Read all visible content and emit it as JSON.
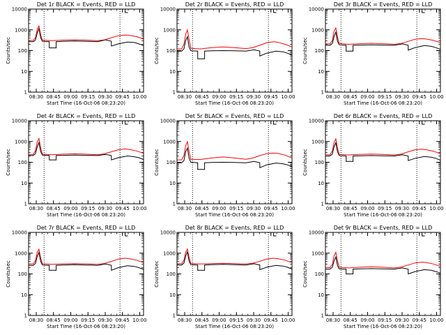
{
  "figure": {
    "common": {
      "xlabel": "Start Time (16-Oct-06 08:23:20)",
      "ylabel": "Counts/sec",
      "x_ticks": [
        "08:30",
        "08:45",
        "09:00",
        "09:15",
        "09:30",
        "09:45",
        "10:00"
      ],
      "y_ticks": [
        "1",
        "10",
        "100",
        "1000",
        "10000"
      ],
      "series_colors": {
        "Events": "#000000",
        "LLD": "#ff0000"
      }
    }
  },
  "chart_data": [
    {
      "type": "line",
      "title": "Det 1r BLACK = Events, RED = LLD",
      "x_unit": "minutes after 08:23:20",
      "xlim": [
        0,
        100
      ],
      "ylim": [
        1,
        10000
      ],
      "y_scale": "log",
      "x_ticks": [
        6.67,
        21.67,
        36.67,
        51.67,
        66.67,
        81.67,
        96.67
      ],
      "vlines": [
        13.5,
        79.5
      ],
      "series": [
        {
          "name": "Events",
          "color": "#000000",
          "x": [
            0,
            4,
            6,
            7.5,
            9,
            10.5,
            12,
            18,
            18,
            24,
            24,
            30,
            40,
            50,
            60,
            67,
            72,
            72,
            78,
            86,
            92,
            96,
            100
          ],
          "y": [
            270,
            270,
            320,
            700,
            1150,
            420,
            280,
            270,
            135,
            135,
            270,
            280,
            290,
            280,
            270,
            330,
            280,
            165,
            210,
            260,
            245,
            210,
            175
          ]
        },
        {
          "name": "LLD",
          "color": "#ff0000",
          "x": [
            0,
            4,
            6,
            7.5,
            9,
            10.5,
            12,
            20,
            30,
            40,
            50,
            60,
            66,
            72,
            78,
            84,
            88,
            94,
            100
          ],
          "y": [
            310,
            310,
            420,
            1050,
            1550,
            600,
            320,
            300,
            320,
            330,
            320,
            300,
            330,
            420,
            520,
            560,
            540,
            470,
            360
          ]
        }
      ]
    },
    {
      "type": "line",
      "title": "Det 2r BLACK = Events, RED = LLD",
      "x_unit": "minutes after 08:23:20",
      "xlim": [
        0,
        100
      ],
      "ylim": [
        1,
        10000
      ],
      "y_scale": "log",
      "x_ticks": [
        6.67,
        21.67,
        36.67,
        51.67,
        66.67,
        81.67,
        96.67
      ],
      "vlines": [
        13.5,
        79.5
      ],
      "series": [
        {
          "name": "Events",
          "color": "#000000",
          "x": [
            0,
            4,
            6,
            7.5,
            9,
            10.5,
            12,
            18,
            18,
            24,
            24,
            30,
            40,
            50,
            60,
            67,
            72,
            72,
            78,
            86,
            92,
            96,
            100
          ],
          "y": [
            95,
            95,
            120,
            300,
            470,
            150,
            98,
            95,
            40,
            40,
            95,
            98,
            100,
            98,
            95,
            110,
            95,
            55,
            75,
            95,
            88,
            75,
            60
          ]
        },
        {
          "name": "LLD",
          "color": "#ff0000",
          "x": [
            0,
            4,
            6,
            7.5,
            9,
            10.5,
            12,
            20,
            30,
            40,
            50,
            60,
            66,
            72,
            78,
            84,
            88,
            94,
            100
          ],
          "y": [
            120,
            120,
            200,
            600,
            1000,
            350,
            130,
            120,
            140,
            150,
            140,
            125,
            140,
            180,
            240,
            270,
            250,
            200,
            150
          ]
        }
      ]
    },
    {
      "type": "line",
      "title": "Det 3r BLACK = Events, RED = LLD",
      "x_unit": "minutes after 08:23:20",
      "xlim": [
        0,
        100
      ],
      "ylim": [
        1,
        10000
      ],
      "y_scale": "log",
      "x_ticks": [
        6.67,
        21.67,
        36.67,
        51.67,
        66.67,
        81.67,
        96.67
      ],
      "vlines": [
        13.5,
        79.5
      ],
      "series": [
        {
          "name": "Events",
          "color": "#000000",
          "x": [
            0,
            4,
            6,
            7.5,
            9,
            10.5,
            12,
            18,
            18,
            24,
            24,
            30,
            40,
            50,
            60,
            67,
            72,
            72,
            78,
            86,
            92,
            96,
            100
          ],
          "y": [
            180,
            180,
            220,
            480,
            780,
            280,
            190,
            180,
            95,
            95,
            180,
            185,
            190,
            185,
            180,
            210,
            180,
            105,
            140,
            175,
            160,
            140,
            115
          ]
        },
        {
          "name": "LLD",
          "color": "#ff0000",
          "x": [
            0,
            4,
            6,
            7.5,
            9,
            10.5,
            12,
            20,
            30,
            40,
            50,
            60,
            66,
            72,
            78,
            84,
            88,
            94,
            100
          ],
          "y": [
            210,
            210,
            310,
            850,
            1250,
            450,
            220,
            200,
            215,
            225,
            215,
            200,
            220,
            280,
            350,
            380,
            360,
            310,
            240
          ]
        }
      ]
    },
    {
      "type": "line",
      "title": "Det 4r BLACK = Events, RED = LLD",
      "x_unit": "minutes after 08:23:20",
      "xlim": [
        0,
        100
      ],
      "ylim": [
        1,
        10000
      ],
      "y_scale": "log",
      "x_ticks": [
        6.67,
        21.67,
        36.67,
        51.67,
        66.67,
        81.67,
        96.67
      ],
      "vlines": [
        13.5,
        79.5
      ],
      "series": [
        {
          "name": "Events",
          "color": "#000000",
          "x": [
            0,
            4,
            6,
            7.5,
            9,
            10.5,
            12,
            18,
            18,
            24,
            24,
            30,
            40,
            50,
            60,
            67,
            72,
            72,
            78,
            86,
            92,
            96,
            100
          ],
          "y": [
            210,
            210,
            260,
            560,
            900,
            330,
            220,
            210,
            130,
            130,
            210,
            215,
            220,
            215,
            210,
            240,
            210,
            130,
            165,
            200,
            185,
            165,
            135
          ]
        },
        {
          "name": "LLD",
          "color": "#ff0000",
          "x": [
            0,
            4,
            6,
            7.5,
            9,
            10.5,
            12,
            20,
            30,
            40,
            50,
            60,
            66,
            72,
            78,
            84,
            88,
            94,
            100
          ],
          "y": [
            240,
            240,
            360,
            950,
            1400,
            500,
            250,
            230,
            245,
            255,
            245,
            230,
            255,
            320,
            400,
            440,
            410,
            350,
            270
          ]
        }
      ]
    },
    {
      "type": "line",
      "title": "Det 5r BLACK = Events, RED = LLD",
      "x_unit": "minutes after 08:23:20",
      "xlim": [
        0,
        100
      ],
      "ylim": [
        1,
        10000
      ],
      "y_scale": "log",
      "x_ticks": [
        6.67,
        21.67,
        36.67,
        51.67,
        66.67,
        81.67,
        96.67
      ],
      "vlines": [
        13.5,
        79.5
      ],
      "series": [
        {
          "name": "Events",
          "color": "#000000",
          "x": [
            0,
            4,
            6,
            7.5,
            9,
            10.5,
            12,
            18,
            18,
            24,
            24,
            30,
            40,
            50,
            60,
            67,
            72,
            72,
            78,
            86,
            92,
            96,
            100
          ],
          "y": [
            95,
            95,
            120,
            320,
            480,
            160,
            100,
            95,
            45,
            45,
            95,
            98,
            100,
            98,
            95,
            110,
            95,
            55,
            75,
            92,
            85,
            75,
            62
          ]
        },
        {
          "name": "LLD",
          "color": "#ff0000",
          "x": [
            0,
            4,
            6,
            7.5,
            9,
            10.5,
            12,
            20,
            30,
            40,
            50,
            60,
            66,
            72,
            78,
            84,
            88,
            94,
            100
          ],
          "y": [
            130,
            130,
            210,
            620,
            980,
            340,
            140,
            135,
            160,
            180,
            160,
            140,
            160,
            210,
            260,
            280,
            265,
            220,
            160
          ]
        }
      ]
    },
    {
      "type": "line",
      "title": "Det 6r BLACK = Events, RED = LLD",
      "x_unit": "minutes after 08:23:20",
      "xlim": [
        0,
        100
      ],
      "ylim": [
        1,
        10000
      ],
      "y_scale": "log",
      "x_ticks": [
        6.67,
        21.67,
        36.67,
        51.67,
        66.67,
        81.67,
        96.67
      ],
      "vlines": [
        13.5,
        79.5
      ],
      "series": [
        {
          "name": "Events",
          "color": "#000000",
          "x": [
            0,
            4,
            6,
            7.5,
            9,
            10.5,
            12,
            18,
            18,
            24,
            24,
            30,
            40,
            50,
            60,
            67,
            72,
            72,
            78,
            86,
            92,
            96,
            100
          ],
          "y": [
            200,
            200,
            250,
            560,
            880,
            320,
            210,
            200,
            110,
            110,
            200,
            205,
            210,
            205,
            200,
            230,
            200,
            120,
            155,
            190,
            175,
            155,
            125
          ]
        },
        {
          "name": "LLD",
          "color": "#ff0000",
          "x": [
            0,
            4,
            6,
            7.5,
            9,
            10.5,
            12,
            20,
            30,
            40,
            50,
            60,
            66,
            72,
            78,
            84,
            88,
            94,
            100
          ],
          "y": [
            230,
            230,
            350,
            900,
            1350,
            480,
            240,
            225,
            240,
            250,
            240,
            225,
            250,
            320,
            400,
            430,
            400,
            340,
            260
          ]
        }
      ]
    },
    {
      "type": "line",
      "title": "Det 7r BLACK = Events, RED = LLD",
      "x_unit": "minutes after 08:23:20",
      "xlim": [
        0,
        100
      ],
      "ylim": [
        1,
        10000
      ],
      "y_scale": "log",
      "x_ticks": [
        6.67,
        21.67,
        36.67,
        51.67,
        66.67,
        81.67,
        96.67
      ],
      "vlines": [
        13.5,
        79.5
      ],
      "series": [
        {
          "name": "Events",
          "color": "#000000",
          "x": [
            0,
            4,
            6,
            7.5,
            9,
            10.5,
            12,
            18,
            18,
            24,
            24,
            30,
            40,
            50,
            60,
            67,
            72,
            72,
            78,
            86,
            92,
            96,
            100
          ],
          "y": [
            260,
            260,
            320,
            700,
            1100,
            410,
            270,
            260,
            150,
            150,
            260,
            270,
            280,
            270,
            260,
            300,
            260,
            150,
            200,
            250,
            230,
            200,
            165
          ]
        },
        {
          "name": "LLD",
          "color": "#ff0000",
          "x": [
            0,
            4,
            6,
            7.5,
            9,
            10.5,
            12,
            20,
            30,
            40,
            50,
            60,
            66,
            72,
            78,
            84,
            88,
            94,
            100
          ],
          "y": [
            300,
            300,
            440,
            1100,
            1550,
            600,
            310,
            290,
            305,
            315,
            305,
            290,
            320,
            400,
            520,
            570,
            540,
            460,
            350
          ]
        }
      ]
    },
    {
      "type": "line",
      "title": "Det 8r BLACK = Events, RED = LLD",
      "x_unit": "minutes after 08:23:20",
      "xlim": [
        0,
        100
      ],
      "ylim": [
        1,
        10000
      ],
      "y_scale": "log",
      "x_ticks": [
        6.67,
        21.67,
        36.67,
        51.67,
        66.67,
        81.67,
        96.67
      ],
      "vlines": [
        13.5,
        79.5
      ],
      "series": [
        {
          "name": "Events",
          "color": "#000000",
          "x": [
            0,
            4,
            6,
            7.5,
            9,
            10.5,
            12,
            18,
            18,
            24,
            24,
            30,
            40,
            50,
            60,
            67,
            72,
            72,
            78,
            86,
            92,
            96,
            100
          ],
          "y": [
            270,
            270,
            330,
            720,
            1150,
            420,
            280,
            270,
            150,
            150,
            270,
            280,
            290,
            280,
            270,
            310,
            270,
            160,
            210,
            260,
            240,
            210,
            170
          ]
        },
        {
          "name": "LLD",
          "color": "#ff0000",
          "x": [
            0,
            4,
            6,
            7.5,
            9,
            10.5,
            12,
            20,
            30,
            40,
            50,
            60,
            66,
            72,
            78,
            84,
            88,
            94,
            100
          ],
          "y": [
            310,
            310,
            450,
            1100,
            1600,
            620,
            320,
            300,
            315,
            325,
            315,
            300,
            330,
            410,
            520,
            570,
            540,
            460,
            350
          ]
        }
      ]
    },
    {
      "type": "line",
      "title": "Det 9r BLACK = Events, RED = LLD",
      "x_unit": "minutes after 08:23:20",
      "xlim": [
        0,
        100
      ],
      "ylim": [
        1,
        10000
      ],
      "y_scale": "log",
      "x_ticks": [
        6.67,
        21.67,
        36.67,
        51.67,
        66.67,
        81.67,
        96.67
      ],
      "vlines": [
        13.5,
        79.5
      ],
      "series": [
        {
          "name": "Events",
          "color": "#000000",
          "x": [
            0,
            4,
            6,
            7.5,
            9,
            10.5,
            12,
            18,
            18,
            24,
            24,
            30,
            40,
            50,
            60,
            67,
            72,
            72,
            78,
            86,
            92,
            96,
            100
          ],
          "y": [
            170,
            170,
            210,
            430,
            650,
            250,
            175,
            170,
            100,
            100,
            170,
            175,
            180,
            175,
            170,
            195,
            170,
            100,
            130,
            160,
            150,
            130,
            110
          ]
        },
        {
          "name": "LLD",
          "color": "#ff0000",
          "x": [
            0,
            4,
            6,
            7.5,
            9,
            10.5,
            12,
            20,
            30,
            40,
            50,
            60,
            66,
            72,
            78,
            84,
            88,
            94,
            100
          ],
          "y": [
            200,
            200,
            290,
            750,
            1100,
            420,
            210,
            195,
            210,
            220,
            210,
            195,
            215,
            270,
            340,
            370,
            350,
            300,
            230
          ]
        }
      ]
    }
  ]
}
